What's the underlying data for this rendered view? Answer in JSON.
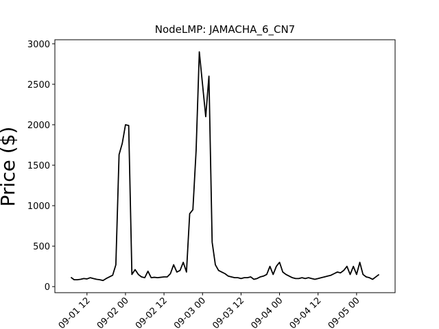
{
  "chart_data": {
    "type": "line",
    "title": "NodeLMP: JAMACHA_6_CN7",
    "y_label": "Price ($)",
    "x": [
      "09-01 07",
      "09-01 08",
      "09-01 09",
      "09-01 10",
      "09-01 11",
      "09-01 12",
      "09-01 13",
      "09-01 14",
      "09-01 15",
      "09-01 16",
      "09-01 17",
      "09-01 18",
      "09-01 19",
      "09-01 20",
      "09-01 21",
      "09-01 22",
      "09-01 23",
      "09-02 00",
      "09-02 01",
      "09-02 02",
      "09-02 03",
      "09-02 04",
      "09-02 05",
      "09-02 06",
      "09-02 07",
      "09-02 08",
      "09-02 09",
      "09-02 10",
      "09-02 11",
      "09-02 12",
      "09-02 13",
      "09-02 14",
      "09-02 15",
      "09-02 16",
      "09-02 17",
      "09-02 18",
      "09-02 19",
      "09-02 20",
      "09-02 21",
      "09-02 22",
      "09-02 23",
      "09-03 00",
      "09-03 01",
      "09-03 02",
      "09-03 03",
      "09-03 04",
      "09-03 05",
      "09-03 06",
      "09-03 07",
      "09-03 08",
      "09-03 09",
      "09-03 10",
      "09-03 11",
      "09-03 12",
      "09-03 13",
      "09-03 14",
      "09-03 15",
      "09-03 16",
      "09-03 17",
      "09-03 18",
      "09-03 19",
      "09-03 20",
      "09-03 21",
      "09-03 22",
      "09-03 23",
      "09-04 00",
      "09-04 01",
      "09-04 02",
      "09-04 03",
      "09-04 04",
      "09-04 05",
      "09-04 06",
      "09-04 07",
      "09-04 08",
      "09-04 09",
      "09-04 10",
      "09-04 11",
      "09-04 12",
      "09-04 13",
      "09-04 14",
      "09-04 15",
      "09-04 16",
      "09-04 17",
      "09-04 18",
      "09-04 19",
      "09-04 20",
      "09-04 21",
      "09-04 22",
      "09-04 23",
      "09-05 00",
      "09-05 01",
      "09-05 02",
      "09-05 03",
      "09-05 04",
      "09-05 05",
      "09-05 06",
      "09-05 07"
    ],
    "values": [
      115,
      85,
      85,
      90,
      100,
      95,
      110,
      100,
      90,
      85,
      75,
      100,
      120,
      140,
      270,
      1630,
      1770,
      2000,
      1990,
      150,
      210,
      150,
      120,
      110,
      190,
      110,
      115,
      110,
      115,
      120,
      120,
      160,
      270,
      180,
      200,
      300,
      180,
      900,
      950,
      1680,
      2900,
      2500,
      2100,
      2600,
      550,
      270,
      200,
      180,
      160,
      130,
      120,
      110,
      110,
      100,
      110,
      110,
      120,
      90,
      100,
      120,
      130,
      150,
      250,
      150,
      250,
      300,
      180,
      150,
      130,
      110,
      100,
      100,
      110,
      100,
      110,
      100,
      90,
      100,
      110,
      120,
      130,
      140,
      160,
      180,
      170,
      200,
      250,
      150,
      250,
      150,
      300,
      150,
      120,
      110,
      90,
      120,
      150
    ],
    "color": "#000000",
    "xlim": [
      "09-01 02",
      "09-05 12"
    ],
    "xticks": [
      "09-01 12",
      "09-02 00",
      "09-02 12",
      "09-03 00",
      "09-03 12",
      "09-04 00",
      "09-04 12",
      "09-05 00"
    ],
    "ylim": [
      -75,
      3050
    ],
    "yticks": [
      0,
      500,
      1000,
      1500,
      2000,
      2500,
      3000
    ]
  }
}
